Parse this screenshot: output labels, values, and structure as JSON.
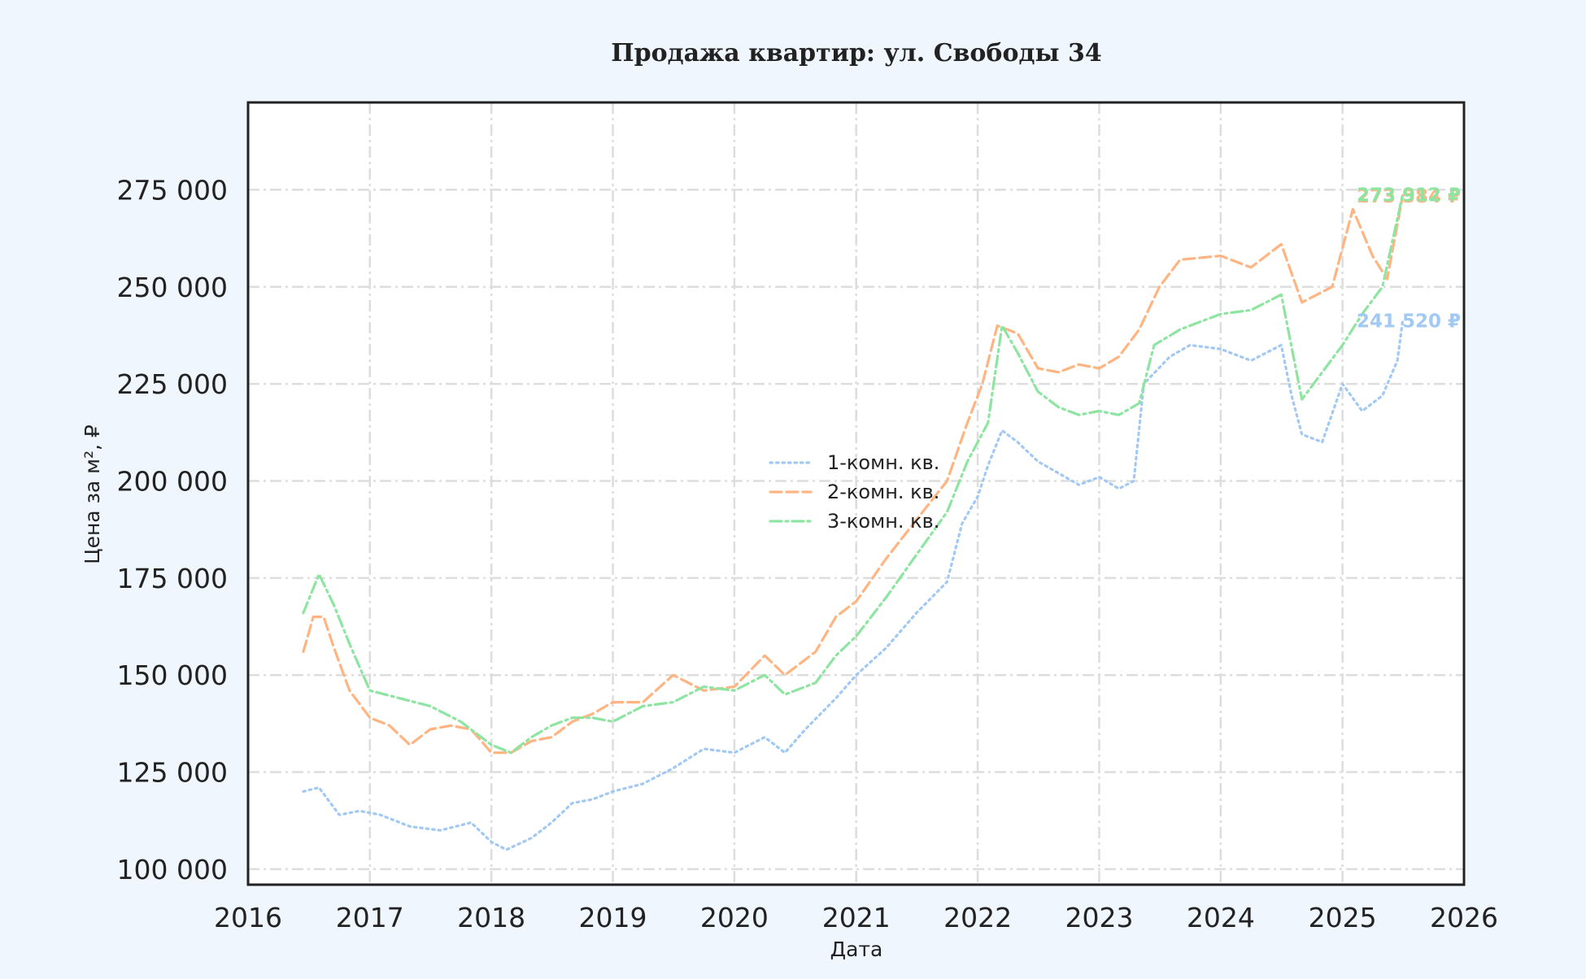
{
  "chart_data": {
    "type": "line",
    "title": "Продажа квартир: ул. Свободы 34",
    "xlabel": "Дата",
    "ylabel": "Цена за м², ₽",
    "xlim": [
      "2016-01-01",
      "2026-01-01"
    ],
    "ylim": [
      96000,
      297500
    ],
    "x_ticks": [
      "2016",
      "2017",
      "2018",
      "2019",
      "2020",
      "2021",
      "2022",
      "2023",
      "2024",
      "2025",
      "2026"
    ],
    "y_ticks": [
      100000,
      125000,
      150000,
      175000,
      200000,
      225000,
      250000,
      275000
    ],
    "y_tick_labels": [
      "100 000",
      "125 000",
      "150 000",
      "175 000",
      "200 000",
      "225 000",
      "250 000",
      "275 000"
    ],
    "grid": true,
    "legend_position": "center",
    "series": [
      {
        "name": "1-комн. кв.",
        "color": "#a1c9f4",
        "dash": "dotted",
        "end_label": "241 520 ₽",
        "points": [
          [
            "2016-06-15",
            120000
          ],
          [
            "2016-08-01",
            121000
          ],
          [
            "2016-10-01",
            114000
          ],
          [
            "2016-12-01",
            115000
          ],
          [
            "2017-02-01",
            114000
          ],
          [
            "2017-05-01",
            111000
          ],
          [
            "2017-08-01",
            110000
          ],
          [
            "2017-11-01",
            112000
          ],
          [
            "2018-01-01",
            107000
          ],
          [
            "2018-02-15",
            105000
          ],
          [
            "2018-05-01",
            108000
          ],
          [
            "2018-07-01",
            112000
          ],
          [
            "2018-09-01",
            117000
          ],
          [
            "2018-11-01",
            118000
          ],
          [
            "2019-01-01",
            120000
          ],
          [
            "2019-04-01",
            122000
          ],
          [
            "2019-07-01",
            126000
          ],
          [
            "2019-10-01",
            131000
          ],
          [
            "2020-01-01",
            130000
          ],
          [
            "2020-04-01",
            134000
          ],
          [
            "2020-06-01",
            130000
          ],
          [
            "2020-08-01",
            136000
          ],
          [
            "2020-11-01",
            144000
          ],
          [
            "2021-01-01",
            150000
          ],
          [
            "2021-04-01",
            157000
          ],
          [
            "2021-07-01",
            166000
          ],
          [
            "2021-10-01",
            174000
          ],
          [
            "2021-11-15",
            189000
          ],
          [
            "2022-01-01",
            196000
          ],
          [
            "2022-02-01",
            204000
          ],
          [
            "2022-03-15",
            213000
          ],
          [
            "2022-05-01",
            210000
          ],
          [
            "2022-07-01",
            205000
          ],
          [
            "2022-09-01",
            202000
          ],
          [
            "2022-11-01",
            199000
          ],
          [
            "2023-01-01",
            201000
          ],
          [
            "2023-03-01",
            198000
          ],
          [
            "2023-04-15",
            200000
          ],
          [
            "2023-05-15",
            225000
          ],
          [
            "2023-08-01",
            232000
          ],
          [
            "2023-10-01",
            235000
          ],
          [
            "2024-01-01",
            234000
          ],
          [
            "2024-04-01",
            231000
          ],
          [
            "2024-07-01",
            235000
          ],
          [
            "2024-08-01",
            222000
          ],
          [
            "2024-09-01",
            212000
          ],
          [
            "2024-11-01",
            210000
          ],
          [
            "2025-01-01",
            225000
          ],
          [
            "2025-03-01",
            218000
          ],
          [
            "2025-05-01",
            222000
          ],
          [
            "2025-06-15",
            231000
          ],
          [
            "2025-07-01",
            241520
          ]
        ]
      },
      {
        "name": "2-комн. кв.",
        "color": "#ffb482",
        "dash": "dashed",
        "end_label": "273 584 ₽",
        "points": [
          [
            "2016-06-15",
            156000
          ],
          [
            "2016-07-15",
            165000
          ],
          [
            "2016-08-15",
            165000
          ],
          [
            "2016-09-15",
            157000
          ],
          [
            "2016-11-01",
            146000
          ],
          [
            "2017-01-01",
            139000
          ],
          [
            "2017-03-01",
            137000
          ],
          [
            "2017-05-01",
            132000
          ],
          [
            "2017-07-01",
            136000
          ],
          [
            "2017-09-01",
            137000
          ],
          [
            "2017-11-01",
            136000
          ],
          [
            "2018-01-01",
            130000
          ],
          [
            "2018-03-01",
            130000
          ],
          [
            "2018-05-01",
            133000
          ],
          [
            "2018-07-01",
            134000
          ],
          [
            "2018-09-01",
            138000
          ],
          [
            "2018-11-01",
            140000
          ],
          [
            "2019-01-01",
            143000
          ],
          [
            "2019-04-01",
            143000
          ],
          [
            "2019-07-01",
            150000
          ],
          [
            "2019-10-01",
            146000
          ],
          [
            "2020-01-01",
            147000
          ],
          [
            "2020-04-01",
            155000
          ],
          [
            "2020-06-01",
            150000
          ],
          [
            "2020-09-01",
            156000
          ],
          [
            "2020-11-01",
            165000
          ],
          [
            "2021-01-01",
            169000
          ],
          [
            "2021-04-01",
            180000
          ],
          [
            "2021-07-01",
            190000
          ],
          [
            "2021-10-01",
            200000
          ],
          [
            "2021-12-01",
            215000
          ],
          [
            "2022-01-15",
            225000
          ],
          [
            "2022-03-01",
            240000
          ],
          [
            "2022-05-01",
            238000
          ],
          [
            "2022-07-01",
            229000
          ],
          [
            "2022-09-01",
            228000
          ],
          [
            "2022-11-01",
            230000
          ],
          [
            "2023-01-01",
            229000
          ],
          [
            "2023-03-01",
            232000
          ],
          [
            "2023-05-01",
            239000
          ],
          [
            "2023-07-01",
            250000
          ],
          [
            "2023-09-01",
            257000
          ],
          [
            "2024-01-01",
            258000
          ],
          [
            "2024-04-01",
            255000
          ],
          [
            "2024-07-01",
            261000
          ],
          [
            "2024-09-01",
            246000
          ],
          [
            "2024-12-01",
            250000
          ],
          [
            "2025-02-01",
            270000
          ],
          [
            "2025-04-01",
            258000
          ],
          [
            "2025-05-15",
            252000
          ],
          [
            "2025-07-01",
            273584
          ]
        ]
      },
      {
        "name": "3-комн. кв.",
        "color": "#8de5a1",
        "dash": "dashdot",
        "end_label": "273 912 ₽",
        "points": [
          [
            "2016-06-15",
            166000
          ],
          [
            "2016-08-01",
            176000
          ],
          [
            "2016-09-15",
            168000
          ],
          [
            "2016-11-01",
            158000
          ],
          [
            "2017-01-01",
            146000
          ],
          [
            "2017-04-01",
            144000
          ],
          [
            "2017-07-01",
            142000
          ],
          [
            "2017-10-01",
            138000
          ],
          [
            "2018-01-01",
            132000
          ],
          [
            "2018-03-01",
            130000
          ],
          [
            "2018-05-01",
            134000
          ],
          [
            "2018-07-01",
            137000
          ],
          [
            "2018-09-01",
            139000
          ],
          [
            "2018-11-01",
            139000
          ],
          [
            "2019-01-01",
            138000
          ],
          [
            "2019-04-01",
            142000
          ],
          [
            "2019-07-01",
            143000
          ],
          [
            "2019-10-01",
            147000
          ],
          [
            "2020-01-01",
            146000
          ],
          [
            "2020-04-01",
            150000
          ],
          [
            "2020-06-01",
            145000
          ],
          [
            "2020-09-01",
            148000
          ],
          [
            "2020-11-01",
            155000
          ],
          [
            "2021-01-01",
            160000
          ],
          [
            "2021-04-01",
            170000
          ],
          [
            "2021-07-01",
            181000
          ],
          [
            "2021-10-01",
            192000
          ],
          [
            "2021-12-01",
            205000
          ],
          [
            "2022-02-01",
            215000
          ],
          [
            "2022-03-15",
            240000
          ],
          [
            "2022-05-01",
            233000
          ],
          [
            "2022-07-01",
            223000
          ],
          [
            "2022-09-01",
            219000
          ],
          [
            "2022-11-01",
            217000
          ],
          [
            "2023-01-01",
            218000
          ],
          [
            "2023-03-01",
            217000
          ],
          [
            "2023-05-01",
            220000
          ],
          [
            "2023-06-15",
            235000
          ],
          [
            "2023-09-01",
            239000
          ],
          [
            "2024-01-01",
            243000
          ],
          [
            "2024-04-01",
            244000
          ],
          [
            "2024-07-01",
            248000
          ],
          [
            "2024-09-01",
            221000
          ],
          [
            "2024-11-01",
            228000
          ],
          [
            "2025-01-01",
            235000
          ],
          [
            "2025-03-01",
            243000
          ],
          [
            "2025-05-01",
            250000
          ],
          [
            "2025-07-01",
            273912
          ]
        ]
      }
    ]
  }
}
